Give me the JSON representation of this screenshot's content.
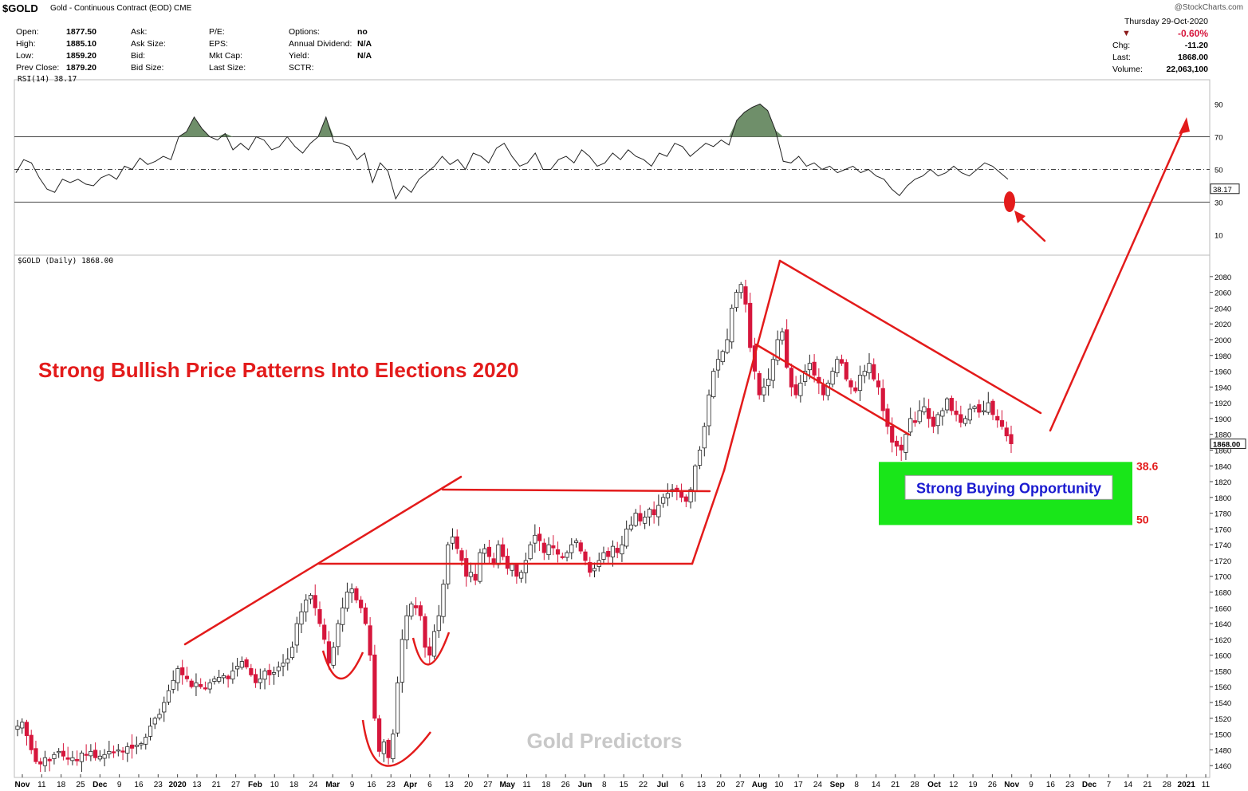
{
  "header": {
    "symbol": "$GOLD",
    "description": "Gold - Continuous Contract (EOD) CME",
    "brand": "@StockCharts.com",
    "date": "Thursday  29-Oct-2020"
  },
  "stats_left": [
    [
      {
        "k": "Open:",
        "v": "1877.50"
      },
      {
        "k": "Ask:",
        "v": ""
      },
      {
        "k": "P/E:",
        "v": ""
      },
      {
        "k": "Options:",
        "v": "no"
      }
    ],
    [
      {
        "k": "High:",
        "v": "1885.10"
      },
      {
        "k": "Ask Size:",
        "v": ""
      },
      {
        "k": "EPS:",
        "v": ""
      },
      {
        "k": "Annual Dividend:",
        "v": "N/A"
      }
    ],
    [
      {
        "k": "Low:",
        "v": "1859.20"
      },
      {
        "k": "Bid:",
        "v": ""
      },
      {
        "k": "Mkt Cap:",
        "v": ""
      },
      {
        "k": "Yield:",
        "v": "N/A"
      }
    ],
    [
      {
        "k": "Prev Close:",
        "v": "1879.20"
      },
      {
        "k": "Bid Size:",
        "v": ""
      },
      {
        "k": "Last Size:",
        "v": ""
      },
      {
        "k": "SCTR:",
        "v": ""
      }
    ]
  ],
  "stats_right": {
    "change_pct": "-0.60%",
    "chg_label": "Chg:",
    "chg": "-11.20",
    "last_label": "Last:",
    "last": "1868.00",
    "volume_label": "Volume:",
    "volume": "22,063,100"
  },
  "colors": {
    "up": "#ffffff",
    "down": "#d6163c",
    "annotation": "#e31b1b",
    "rsi_fill": "#6f8f6a",
    "green_box": "#19e619",
    "text_blue": "#1a1ad0"
  },
  "chart_data": [
    {
      "type": "line",
      "panel": "RSI",
      "label": "RSI(14) 38.17",
      "last_value_tag": "38.17",
      "ylim": [
        0,
        100
      ],
      "yticks": [
        10,
        30,
        50,
        70,
        90
      ],
      "reference_lines": [
        30,
        50,
        70
      ],
      "series": [
        {
          "values": [
            48,
            56,
            54,
            45,
            38,
            36,
            44,
            42,
            44,
            41,
            40,
            45,
            47,
            44,
            52,
            50,
            57,
            53,
            55,
            58,
            56,
            70,
            73,
            82,
            75,
            70,
            68,
            72,
            62,
            66,
            62,
            70,
            68,
            62,
            64,
            70,
            64,
            60,
            66,
            70,
            82,
            67,
            66,
            64,
            56,
            60,
            42,
            54,
            49,
            32,
            40,
            36,
            44,
            48,
            52,
            58,
            53,
            56,
            50,
            60,
            58,
            54,
            63,
            66,
            58,
            52,
            54,
            60,
            50,
            50,
            56,
            58,
            54,
            62,
            58,
            52,
            54,
            60,
            56,
            62,
            58,
            56,
            52,
            60,
            58,
            66,
            64,
            58,
            62,
            66,
            64,
            68,
            65,
            80,
            85,
            88,
            90,
            86,
            74,
            55,
            54,
            58,
            52,
            54,
            50,
            52,
            48,
            50,
            52,
            48,
            50,
            46,
            44,
            38,
            34,
            40,
            44,
            46,
            50,
            46,
            48,
            52,
            48,
            46,
            50,
            54,
            52,
            48,
            44
          ]
        }
      ]
    },
    {
      "type": "candlestick",
      "panel": "price",
      "label": "$GOLD (Daily) 1868.00",
      "last_value_tag": "1868.00",
      "ylim": [
        1445,
        2095
      ],
      "yticks": [
        1460,
        1480,
        1500,
        1520,
        1540,
        1560,
        1580,
        1600,
        1620,
        1640,
        1660,
        1680,
        1700,
        1720,
        1740,
        1760,
        1780,
        1800,
        1820,
        1840,
        1860,
        1880,
        1900,
        1920,
        1940,
        1960,
        1980,
        2000,
        2020,
        2040,
        2060,
        2080
      ],
      "x_labels": [
        {
          "t": "Nov",
          "major": true
        },
        {
          "t": "11"
        },
        {
          "t": "18"
        },
        {
          "t": "25"
        },
        {
          "t": "Dec",
          "major": true
        },
        {
          "t": "9"
        },
        {
          "t": "16"
        },
        {
          "t": "23"
        },
        {
          "t": "2020",
          "major": true
        },
        {
          "t": "13"
        },
        {
          "t": "21"
        },
        {
          "t": "27"
        },
        {
          "t": "Feb",
          "major": true
        },
        {
          "t": "10"
        },
        {
          "t": "18"
        },
        {
          "t": "24"
        },
        {
          "t": "Mar",
          "major": true
        },
        {
          "t": "9"
        },
        {
          "t": "16"
        },
        {
          "t": "23"
        },
        {
          "t": "Apr",
          "major": true
        },
        {
          "t": "6"
        },
        {
          "t": "13"
        },
        {
          "t": "20"
        },
        {
          "t": "27"
        },
        {
          "t": "May",
          "major": true
        },
        {
          "t": "11"
        },
        {
          "t": "18"
        },
        {
          "t": "26"
        },
        {
          "t": "Jun",
          "major": true
        },
        {
          "t": "8"
        },
        {
          "t": "15"
        },
        {
          "t": "22"
        },
        {
          "t": "Jul",
          "major": true
        },
        {
          "t": "6"
        },
        {
          "t": "13"
        },
        {
          "t": "20"
        },
        {
          "t": "27"
        },
        {
          "t": "Aug",
          "major": true
        },
        {
          "t": "10"
        },
        {
          "t": "17"
        },
        {
          "t": "24"
        },
        {
          "t": "Sep",
          "major": true
        },
        {
          "t": "8"
        },
        {
          "t": "14"
        },
        {
          "t": "21"
        },
        {
          "t": "28"
        },
        {
          "t": "Oct",
          "major": true
        },
        {
          "t": "12"
        },
        {
          "t": "19"
        },
        {
          "t": "26"
        },
        {
          "t": "Nov",
          "major": true
        },
        {
          "t": "9"
        },
        {
          "t": "16"
        },
        {
          "t": "23"
        },
        {
          "t": "Dec",
          "major": true
        },
        {
          "t": "7"
        },
        {
          "t": "14"
        },
        {
          "t": "21"
        },
        {
          "t": "28"
        },
        {
          "t": "2021",
          "major": true
        },
        {
          "t": "11"
        }
      ],
      "close_path": [
        1510,
        1515,
        1498,
        1480,
        1465,
        1462,
        1470,
        1466,
        1474,
        1478,
        1472,
        1468,
        1470,
        1466,
        1476,
        1474,
        1478,
        1470,
        1472,
        1474,
        1478,
        1477,
        1480,
        1478,
        1484,
        1482,
        1486,
        1488,
        1496,
        1510,
        1520,
        1525,
        1540,
        1555,
        1568,
        1583,
        1575,
        1570,
        1560,
        1565,
        1560,
        1558,
        1565,
        1570,
        1572,
        1574,
        1570,
        1580,
        1586,
        1592,
        1585,
        1575,
        1565,
        1570,
        1580,
        1575,
        1578,
        1585,
        1590,
        1595,
        1610,
        1640,
        1655,
        1670,
        1676,
        1660,
        1640,
        1620,
        1590,
        1610,
        1640,
        1660,
        1680,
        1684,
        1670,
        1660,
        1640,
        1600,
        1520,
        1478,
        1490,
        1470,
        1500,
        1565,
        1620,
        1650,
        1665,
        1660,
        1650,
        1610,
        1600,
        1630,
        1650,
        1690,
        1740,
        1750,
        1735,
        1720,
        1700,
        1705,
        1695,
        1730,
        1735,
        1725,
        1715,
        1740,
        1725,
        1710,
        1715,
        1700,
        1705,
        1720,
        1740,
        1752,
        1745,
        1730,
        1740,
        1736,
        1728,
        1725,
        1730,
        1740,
        1745,
        1732,
        1720,
        1705,
        1710,
        1720,
        1730,
        1725,
        1738,
        1730,
        1740,
        1760,
        1765,
        1780,
        1770,
        1775,
        1785,
        1778,
        1790,
        1800,
        1805,
        1810,
        1808,
        1800,
        1795,
        1810,
        1840,
        1860,
        1890,
        1930,
        1960,
        1975,
        1985,
        2000,
        2040,
        2060,
        2070,
        2045,
        1990,
        1960,
        1930,
        1940,
        1950,
        1975,
        2000,
        2010,
        1965,
        1940,
        1930,
        1945,
        1960,
        1970,
        1955,
        1945,
        1930,
        1945,
        1960,
        1975,
        1970,
        1950,
        1940,
        1935,
        1955,
        1960,
        1970,
        1950,
        1940,
        1910,
        1890,
        1870,
        1865,
        1860,
        1880,
        1900,
        1895,
        1910,
        1915,
        1900,
        1890,
        1905,
        1910,
        1925,
        1910,
        1905,
        1895,
        1900,
        1912,
        1915,
        1908,
        1910,
        1920,
        1905,
        1898,
        1890,
        1878,
        1868
      ],
      "annotations": {
        "headline": "Strong Bullish Price Patterns Into Elections 2020",
        "watermark": "Gold Predictors",
        "buy_zone_text": "Strong Buying Opportunity",
        "fib_upper": "38.6",
        "fib_lower": "50",
        "zone_top_price": 1845,
        "zone_bottom_price": 1765
      }
    }
  ]
}
